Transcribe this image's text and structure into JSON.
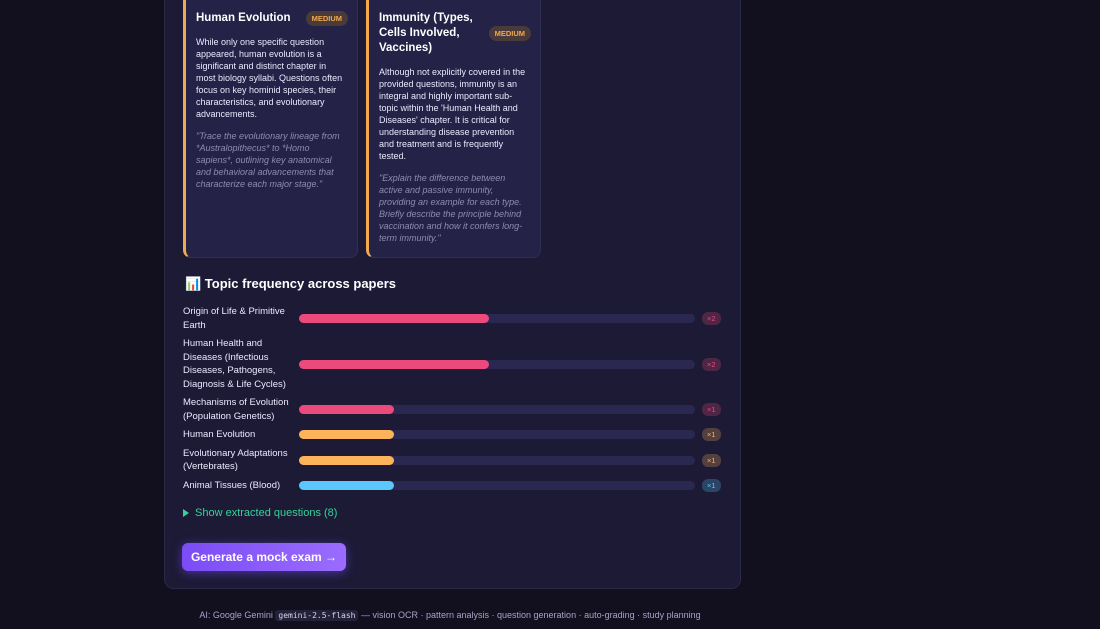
{
  "topic_cards": [
    {
      "title": "Human Evolution",
      "difficulty": "MEDIUM",
      "description": "While only one specific question appeared, human evolution is a significant and distinct chapter in most biology syllabi. Questions often focus on key hominid species, their characteristics, and evolutionary advancements.",
      "sample_question": "\"Trace the evolutionary lineage from *Australopithecus* to *Homo sapiens*, outlining key anatomical and behavioral advancements that characterize each major stage.\""
    },
    {
      "title": "Immunity (Types, Cells Involved, Vaccines)",
      "difficulty": "MEDIUM",
      "description": "Although not explicitly covered in the provided questions, immunity is an integral and highly important sub-topic within the 'Human Health and Diseases' chapter. It is critical for understanding disease prevention and treatment and is frequently tested.",
      "sample_question": "\"Explain the difference between active and passive immunity, providing an example for each type. Briefly describe the principle behind vaccination and how it confers long-term immunity.\""
    }
  ],
  "chart_data": {
    "type": "bar",
    "title": "📊 Topic frequency across papers",
    "categories": [
      "Origin of Life & Primitive Earth",
      "Human Health and Diseases (Infectious Diseases, Pathogens, Diagnosis & Life Cycles)",
      "Mechanisms of Evolution (Population Genetics)",
      "Human Evolution",
      "Evolutionary Adaptations (Vertebrates)",
      "Animal Tissues (Blood)"
    ],
    "values": [
      2,
      2,
      1,
      1,
      1,
      1
    ],
    "value_labels": [
      "×2",
      "×2",
      "×1",
      "×1",
      "×1",
      "×1"
    ],
    "colors": [
      "#ec4a7c",
      "#ec4a7c",
      "#ec4a7c",
      "#fdb35a",
      "#fdb35a",
      "#5ac8fa"
    ]
  },
  "show_questions": "Show extracted questions (8)",
  "cta": "Generate a mock exam →",
  "footer": {
    "prefix": "AI: Google Gemini",
    "model": "gemini-2.5-flash",
    "suffix": "— vision OCR · pattern analysis · question generation · auto-grading · study planning"
  }
}
